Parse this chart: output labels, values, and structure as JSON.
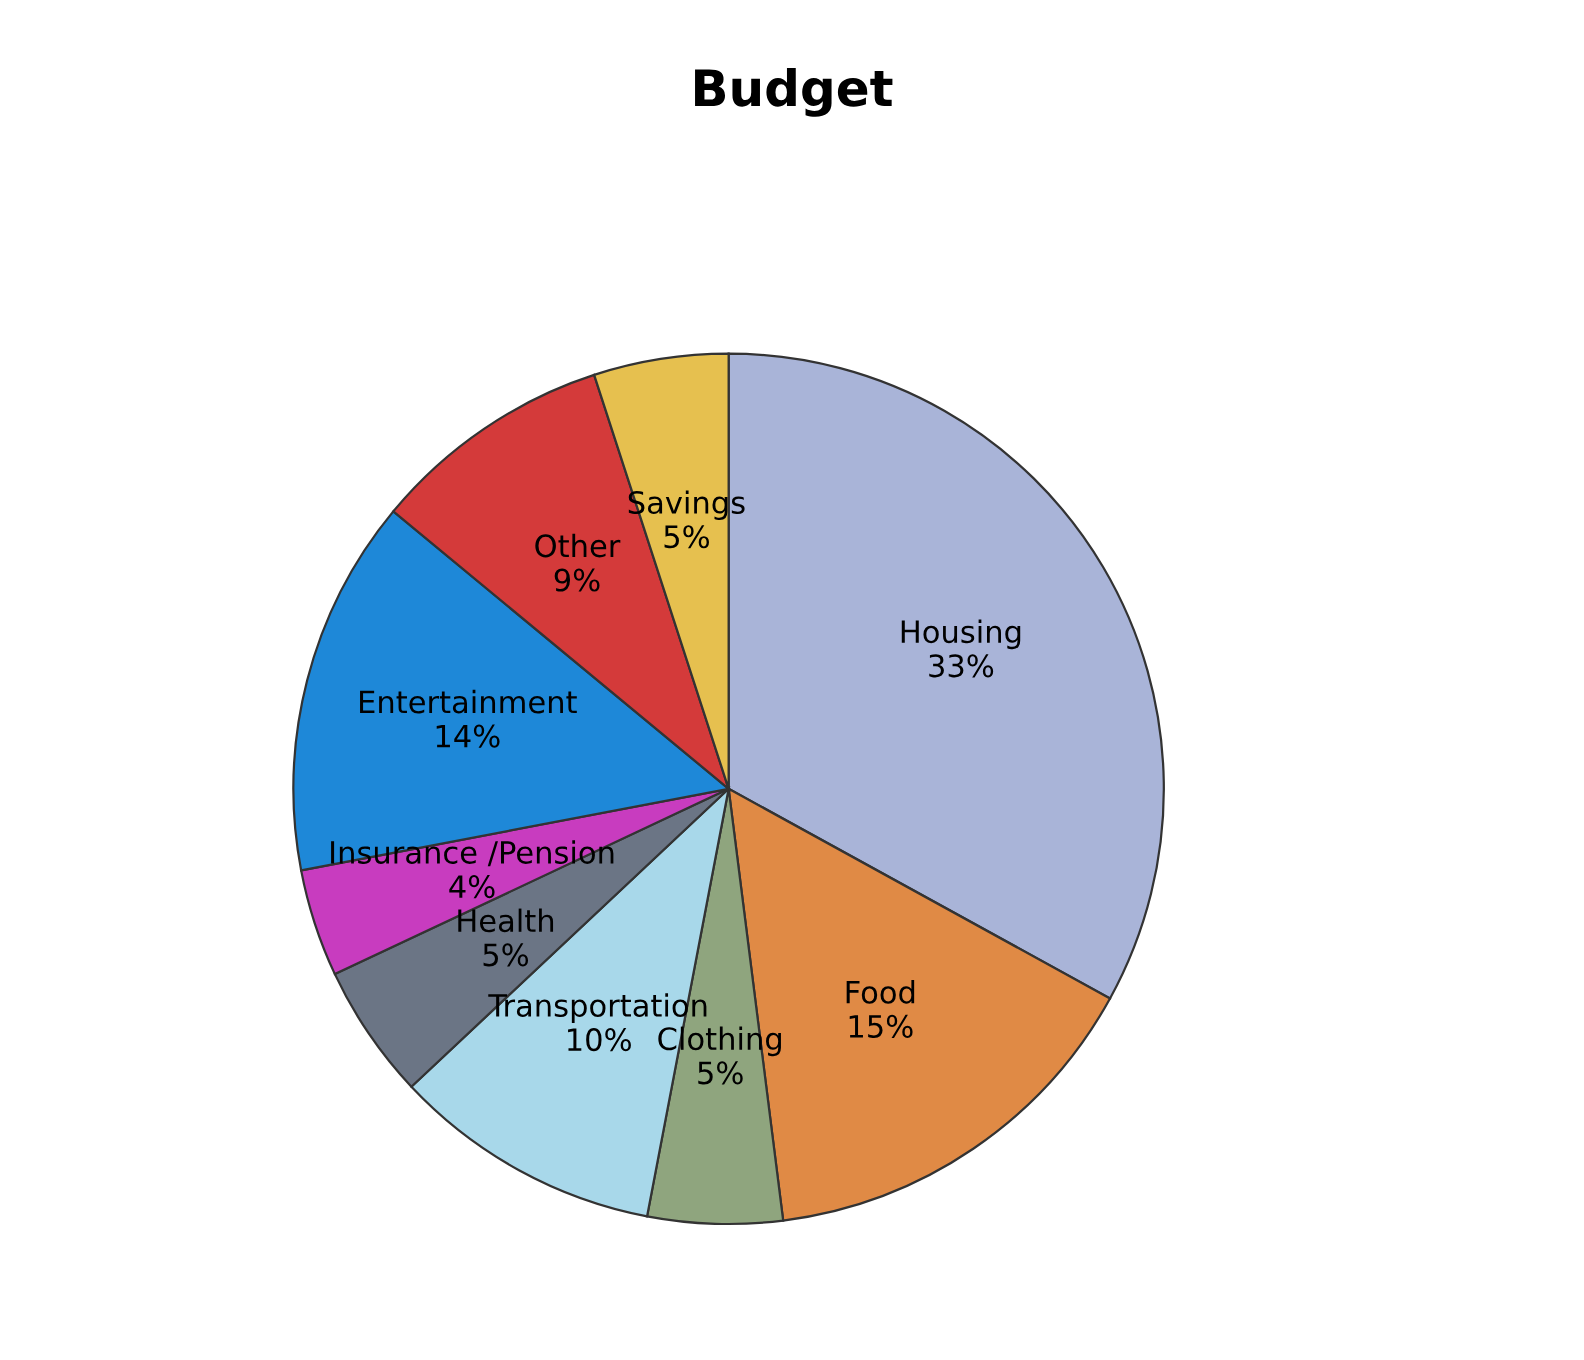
{
  "chart_data": {
    "type": "pie",
    "title": "Budget",
    "categories": [
      "Housing",
      "Food",
      "Clothing",
      "Transportation",
      "Health",
      "Insurance /Pension",
      "Entertainment",
      "Other",
      "Savings"
    ],
    "values": [
      33,
      15,
      5,
      10,
      5,
      4,
      14,
      9,
      5
    ],
    "value_labels": [
      "33%",
      "15%",
      "5%",
      "10%",
      "5%",
      "4%",
      "14%",
      "9%",
      "5%"
    ],
    "colors": [
      "#a9b4d8",
      "#e08a45",
      "#8fa57e",
      "#a8d8ea",
      "#6b7585",
      "#c83cbf",
      "#1e88d8",
      "#d43a3a",
      "#e6c04f"
    ],
    "legend": false
  }
}
